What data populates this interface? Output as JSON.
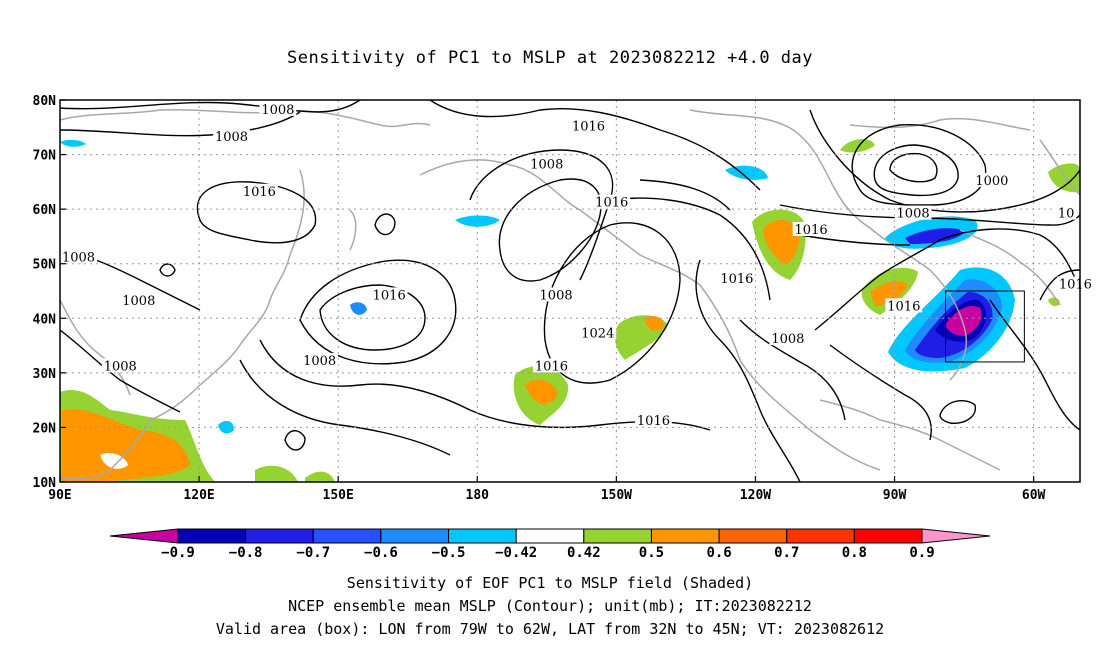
{
  "title": "Sensitivity of PC1 to MSLP at 2023082212 +4.0 day",
  "captions": {
    "line1": "Sensitivity of EOF PC1 to MSLP field (Shaded)",
    "line2": "NCEP ensemble mean MSLP (Contour); unit(mb); IT:2023082212",
    "line3": "Valid area (box): LON from 79W to 62W, LAT from 32N to 45N; VT: 2023082612"
  },
  "map": {
    "lon_range": [
      90,
      310
    ],
    "lat_range": [
      10,
      80
    ],
    "x_ticks": [
      {
        "lon": 90,
        "label": "90E"
      },
      {
        "lon": 120,
        "label": "120E"
      },
      {
        "lon": 150,
        "label": "150E"
      },
      {
        "lon": 180,
        "label": "180"
      },
      {
        "lon": 210,
        "label": "150W"
      },
      {
        "lon": 240,
        "label": "120W"
      },
      {
        "lon": 270,
        "label": "90W"
      },
      {
        "lon": 300,
        "label": "60W"
      }
    ],
    "y_ticks": [
      {
        "lat": 10,
        "label": "10N"
      },
      {
        "lat": 20,
        "label": "20N"
      },
      {
        "lat": 30,
        "label": "30N"
      },
      {
        "lat": 40,
        "label": "40N"
      },
      {
        "lat": 50,
        "label": "50N"
      },
      {
        "lat": 60,
        "label": "60N"
      },
      {
        "lat": 70,
        "label": "70N"
      },
      {
        "lat": 80,
        "label": "80N"
      }
    ],
    "gridlines": true,
    "valid_box": {
      "lon_min": 281,
      "lon_max": 298,
      "lat_min": 32,
      "lat_max": 45
    },
    "contour_labels": [
      {
        "text": "1008",
        "lon": 137,
        "lat": 78
      },
      {
        "text": "1008",
        "lon": 127,
        "lat": 73
      },
      {
        "text": "1016",
        "lon": 133,
        "lat": 63
      },
      {
        "text": "1008",
        "lon": 94,
        "lat": 51
      },
      {
        "text": "1008",
        "lon": 107,
        "lat": 43
      },
      {
        "text": "1008",
        "lon": 103,
        "lat": 31
      },
      {
        "text": "1008",
        "lon": 146,
        "lat": 32
      },
      {
        "text": "1016",
        "lon": 161,
        "lat": 44
      },
      {
        "text": "1016",
        "lon": 196,
        "lat": 31
      },
      {
        "text": "1008",
        "lon": 197,
        "lat": 44
      },
      {
        "text": "1008",
        "lon": 195,
        "lat": 68
      },
      {
        "text": "1016",
        "lon": 204,
        "lat": 75
      },
      {
        "text": "1016",
        "lon": 209,
        "lat": 61
      },
      {
        "text": "1024",
        "lon": 206,
        "lat": 37
      },
      {
        "text": "1016",
        "lon": 218,
        "lat": 21
      },
      {
        "text": "1016",
        "lon": 236,
        "lat": 47
      },
      {
        "text": "1016",
        "lon": 252,
        "lat": 56
      },
      {
        "text": "1008",
        "lon": 247,
        "lat": 36
      },
      {
        "text": "1016",
        "lon": 272,
        "lat": 42
      },
      {
        "text": "1008",
        "lon": 274,
        "lat": 59
      },
      {
        "text": "1000",
        "lon": 291,
        "lat": 65
      },
      {
        "text": "10",
        "lon": 307,
        "lat": 59
      },
      {
        "text": "1016",
        "lon": 309,
        "lat": 46
      }
    ]
  },
  "colorbar": {
    "labels": [
      "-0.9",
      "-0.8",
      "-0.7",
      "-0.6",
      "-0.5",
      "-0.42",
      "0.42",
      "0.5",
      "0.6",
      "0.7",
      "0.8",
      "0.9"
    ],
    "colors": [
      "#c800a0",
      "#0000b4",
      "#1e1ee6",
      "#2850ff",
      "#1e8cff",
      "#00c8ff",
      "#ffffff",
      "#96d232",
      "#ff9600",
      "#ff6400",
      "#ff3200",
      "#ff0000",
      "#ff96c8"
    ]
  }
}
